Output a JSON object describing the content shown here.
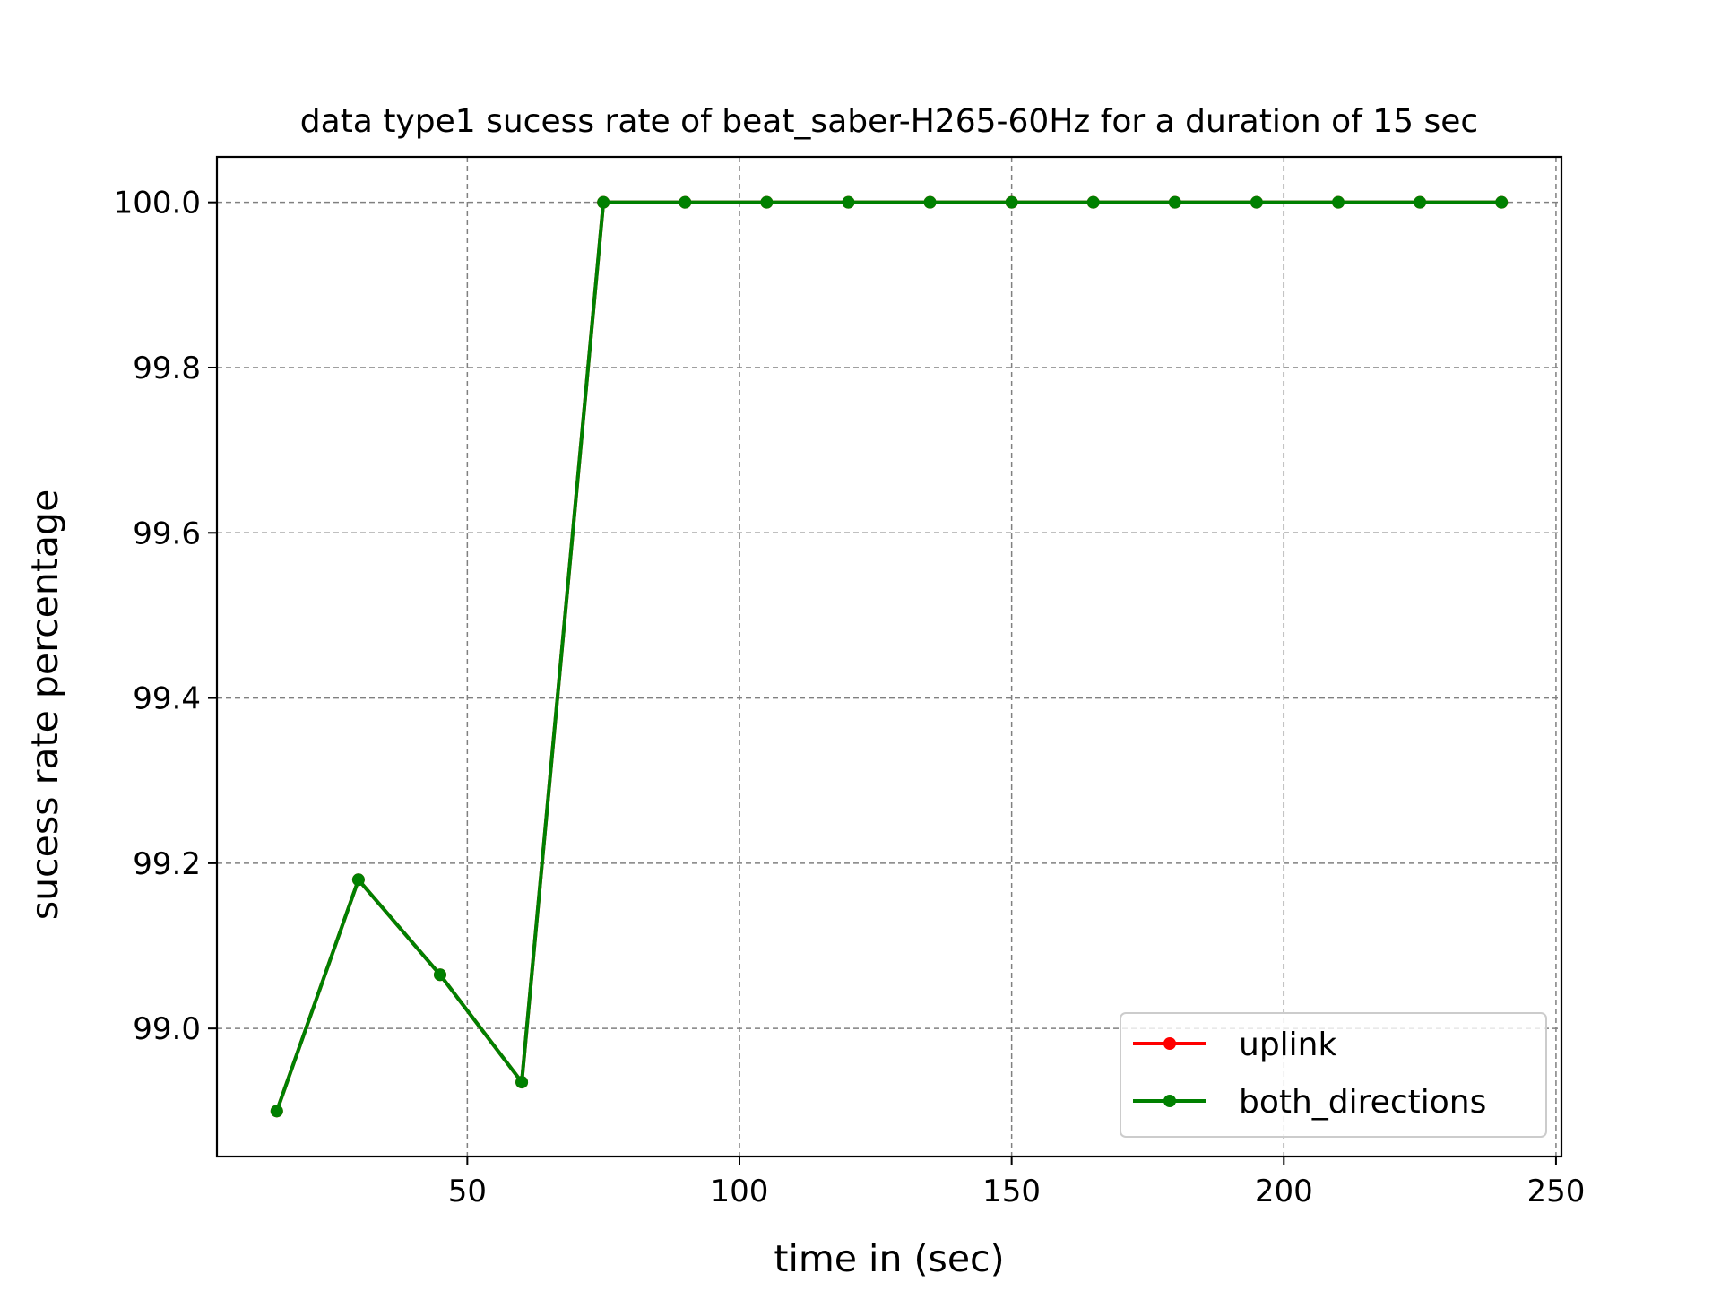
{
  "chart_data": {
    "type": "line",
    "title": "data type1 sucess rate of beat_saber-H265-60Hz for a duration of 15 sec",
    "xlabel": "time in (sec)",
    "ylabel": "sucess rate percentage",
    "xlim": [
      4,
      251
    ],
    "ylim": [
      98.845,
      100.055
    ],
    "xticks": [
      50,
      100,
      150,
      200,
      250
    ],
    "xtick_labels": [
      "50",
      "100",
      "150",
      "200",
      "250"
    ],
    "yticks": [
      99.0,
      99.2,
      99.4,
      99.6,
      99.8,
      100.0
    ],
    "ytick_labels": [
      "99.0",
      "99.2",
      "99.4",
      "99.6",
      "99.8",
      "100.0"
    ],
    "grid": true,
    "legend_position": "lower-right",
    "x": [
      15,
      30,
      45,
      60,
      75,
      90,
      105,
      120,
      135,
      150,
      165,
      180,
      195,
      210,
      225,
      240
    ],
    "series": [
      {
        "name": "uplink",
        "color": "#ff0000",
        "values": [
          98.9,
          99.18,
          99.065,
          98.935,
          100.0,
          100.0,
          100.0,
          100.0,
          100.0,
          100.0,
          100.0,
          100.0,
          100.0,
          100.0,
          100.0,
          100.0
        ]
      },
      {
        "name": "both_directions",
        "color": "#008000",
        "values": [
          98.9,
          99.18,
          99.065,
          98.935,
          100.0,
          100.0,
          100.0,
          100.0,
          100.0,
          100.0,
          100.0,
          100.0,
          100.0,
          100.0,
          100.0,
          100.0
        ]
      }
    ]
  }
}
